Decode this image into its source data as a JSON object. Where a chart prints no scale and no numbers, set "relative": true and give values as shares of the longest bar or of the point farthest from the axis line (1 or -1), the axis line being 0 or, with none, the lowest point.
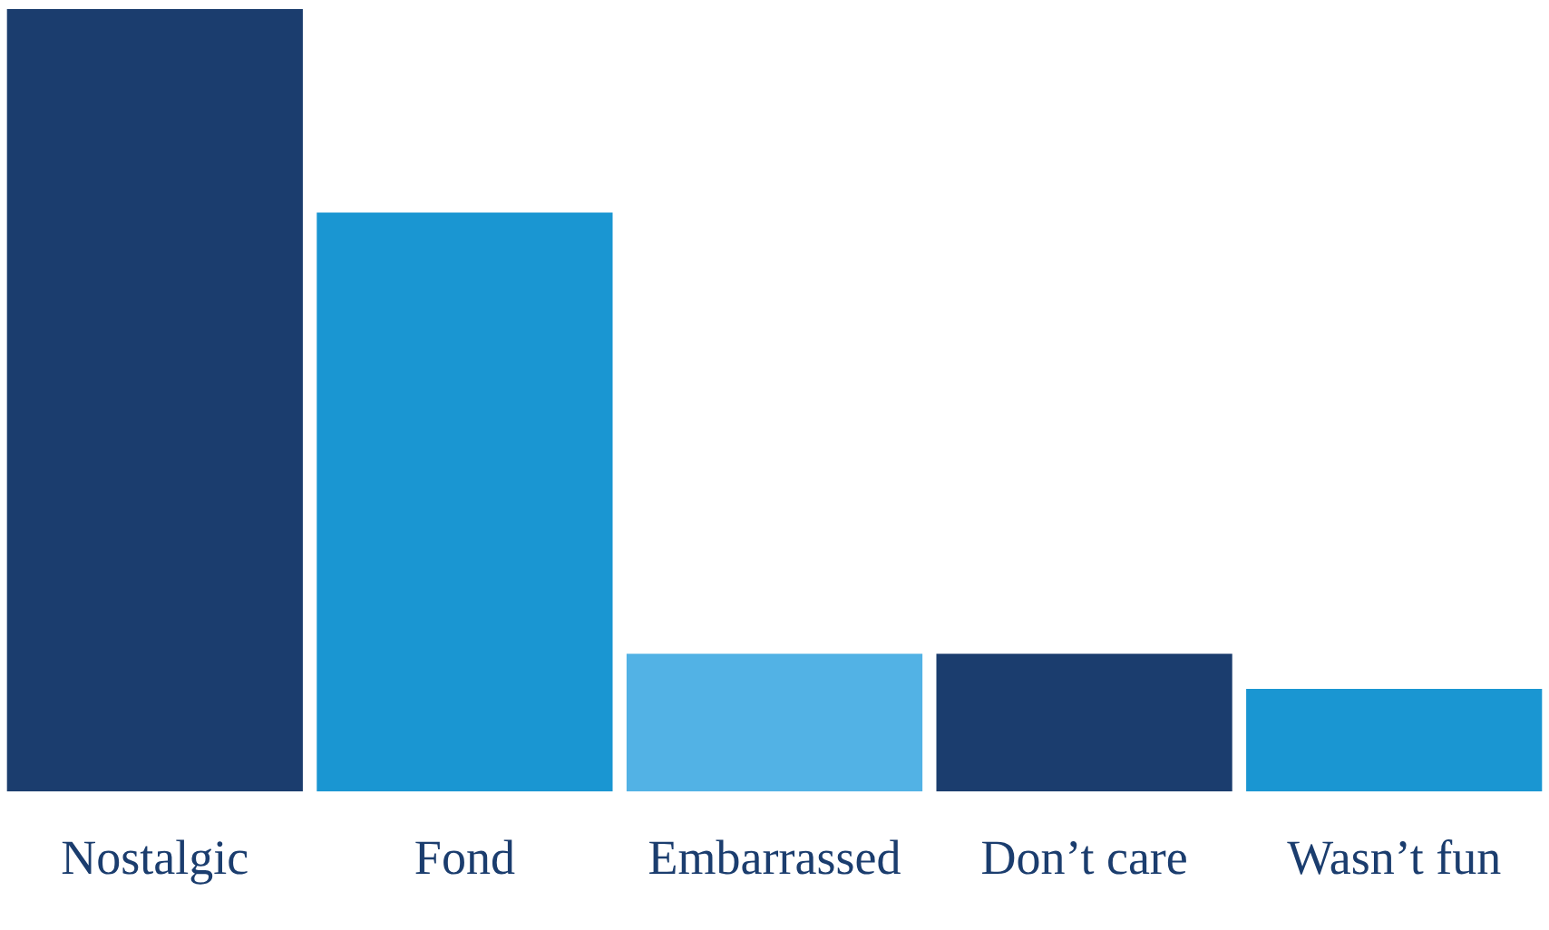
{
  "chart_data": {
    "type": "bar",
    "relative": true,
    "categories": [
      "Nostalgic",
      "Fond",
      "Embarrassed",
      "Don’t care",
      "Wasn’t fun"
    ],
    "values": [
      1,
      0.74,
      0.176,
      0.176,
      0.131
    ],
    "colors": [
      "#1b3d6e",
      "#1a96d2",
      "#52b2e5",
      "#1b3d6e",
      "#1a96d2"
    ],
    "grid": false,
    "legend": false
  }
}
